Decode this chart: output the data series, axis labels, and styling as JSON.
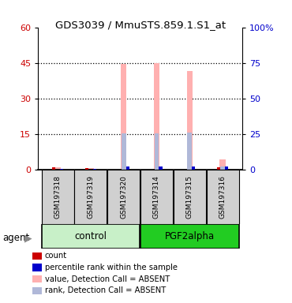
{
  "title": "GDS3039 / MmuSTS.859.1.S1_at",
  "samples": [
    "GSM197318",
    "GSM197319",
    "GSM197320",
    "GSM197314",
    "GSM197315",
    "GSM197316"
  ],
  "ylim_left": [
    0,
    60
  ],
  "ylim_right": [
    0,
    100
  ],
  "yticks_left": [
    0,
    15,
    30,
    45,
    60
  ],
  "yticks_right": [
    0,
    25,
    50,
    75,
    100
  ],
  "yticklabels_left": [
    "0",
    "15",
    "30",
    "45",
    "60"
  ],
  "yticklabels_right": [
    "0",
    "25",
    "50",
    "75",
    "100%"
  ],
  "value_bars": [
    1.0,
    0.8,
    44.5,
    45.0,
    41.5,
    4.5
  ],
  "rank_bars": [
    0.0,
    0.0,
    15.2,
    15.2,
    15.8,
    1.5
  ],
  "count_bars": [
    1.0,
    0.8,
    0.0,
    0.0,
    0.0,
    1.0
  ],
  "pct_rank_bars": [
    0.0,
    0.0,
    0.0,
    0.0,
    0.0,
    1.0
  ],
  "count_color": "#cc0000",
  "pct_rank_color": "#0000cc",
  "value_absent_color": "#ffb0b0",
  "rank_absent_color": "#b0b8d8",
  "legend_items": [
    {
      "label": "count",
      "color": "#cc0000"
    },
    {
      "label": "percentile rank within the sample",
      "color": "#0000cc"
    },
    {
      "label": "value, Detection Call = ABSENT",
      "color": "#ffb0b0"
    },
    {
      "label": "rank, Detection Call = ABSENT",
      "color": "#b0b8d8"
    }
  ],
  "ylabel_left_color": "#cc0000",
  "ylabel_right_color": "#0000cc",
  "ctrl_color_light": "#c8f0c8",
  "ctrl_color_dark": "#44cc44",
  "pgf_color": "#22cc22",
  "sample_box_color": "#d0d0d0"
}
